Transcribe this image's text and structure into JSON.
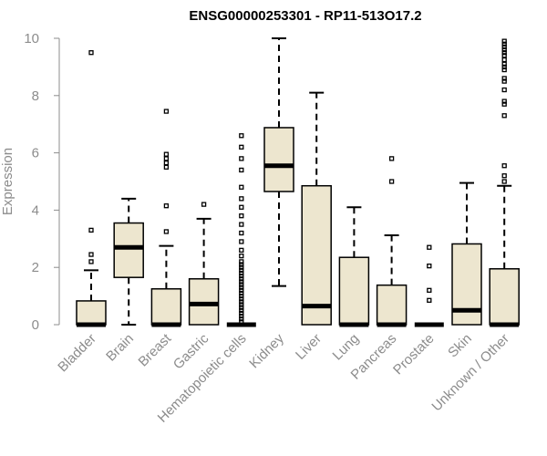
{
  "chart_data": {
    "type": "boxplot",
    "title": "ENSG00000253301 - RP11-513O17.2",
    "ylabel": "Expression",
    "xlabel": "",
    "ylim": [
      0,
      10
    ],
    "yticks": [
      0,
      2,
      4,
      6,
      8,
      10
    ],
    "grid": false,
    "legend": "none",
    "colors": {
      "box_fill": "#ede6cf",
      "box_stroke": "#000000",
      "axis": "#8c8c8c"
    },
    "categories": [
      "Bladder",
      "Brain",
      "Breast",
      "Gastric",
      "Hematopoietic cells",
      "Kidney",
      "Liver",
      "Lung",
      "Pancreas",
      "Prostate",
      "Skin",
      "Unknown / Other"
    ],
    "boxes": [
      {
        "name": "Bladder",
        "whisker_low": 0,
        "q1": 0,
        "median": 0,
        "q3": 0.83,
        "whisker_high": 1.9,
        "outliers": [
          2.2,
          2.45,
          3.3,
          9.5
        ]
      },
      {
        "name": "Brain",
        "whisker_low": 0,
        "q1": 1.65,
        "median": 2.7,
        "q3": 3.55,
        "whisker_high": 4.4,
        "outliers": []
      },
      {
        "name": "Breast",
        "whisker_low": 0,
        "q1": 0,
        "median": 0,
        "q3": 1.25,
        "whisker_high": 2.75,
        "outliers": [
          3.25,
          4.15,
          5.5,
          5.65,
          5.8,
          5.95,
          7.45
        ]
      },
      {
        "name": "Gastric",
        "whisker_low": 0,
        "q1": 0,
        "median": 0.72,
        "q3": 1.6,
        "whisker_high": 3.7,
        "outliers": [
          4.2
        ]
      },
      {
        "name": "Hematopoietic cells",
        "whisker_low": 0,
        "q1": 0,
        "median": 0,
        "q3": 0,
        "whisker_high": 0,
        "outliers": [
          0.1,
          0.2,
          0.3,
          0.4,
          0.5,
          0.6,
          0.7,
          0.8,
          0.9,
          1.0,
          1.1,
          1.2,
          1.3,
          1.4,
          1.5,
          1.6,
          1.7,
          1.8,
          1.9,
          2.0,
          2.1,
          2.2,
          2.4,
          2.6,
          2.9,
          3.2,
          3.5,
          3.8,
          4.1,
          4.4,
          4.8,
          5.4,
          5.8,
          6.2,
          6.6
        ]
      },
      {
        "name": "Kidney",
        "whisker_low": 1.35,
        "q1": 4.65,
        "median": 5.55,
        "q3": 6.88,
        "whisker_high": 10.0,
        "outliers": []
      },
      {
        "name": "Liver",
        "whisker_low": 0,
        "q1": 0,
        "median": 0.65,
        "q3": 4.85,
        "whisker_high": 8.1,
        "outliers": []
      },
      {
        "name": "Lung",
        "whisker_low": 0,
        "q1": 0,
        "median": 0,
        "q3": 2.35,
        "whisker_high": 4.1,
        "outliers": []
      },
      {
        "name": "Pancreas",
        "whisker_low": 0,
        "q1": 0,
        "median": 0,
        "q3": 1.38,
        "whisker_high": 3.12,
        "outliers": [
          5.0,
          5.8
        ]
      },
      {
        "name": "Prostate",
        "whisker_low": 0,
        "q1": 0,
        "median": 0,
        "q3": 0,
        "whisker_high": 0,
        "outliers": [
          0.85,
          1.2,
          2.05,
          2.7
        ]
      },
      {
        "name": "Skin",
        "whisker_low": 0,
        "q1": 0,
        "median": 0.5,
        "q3": 2.82,
        "whisker_high": 4.95,
        "outliers": []
      },
      {
        "name": "Unknown / Other",
        "whisker_low": 0,
        "q1": 0,
        "median": 0,
        "q3": 1.95,
        "whisker_high": 4.85,
        "outliers": [
          5.0,
          5.2,
          5.55,
          7.3,
          7.7,
          7.8,
          8.2,
          8.5,
          8.6,
          8.9,
          9.0,
          9.1,
          9.25,
          9.4,
          9.5,
          9.6,
          9.7,
          9.8,
          9.9
        ]
      }
    ]
  }
}
